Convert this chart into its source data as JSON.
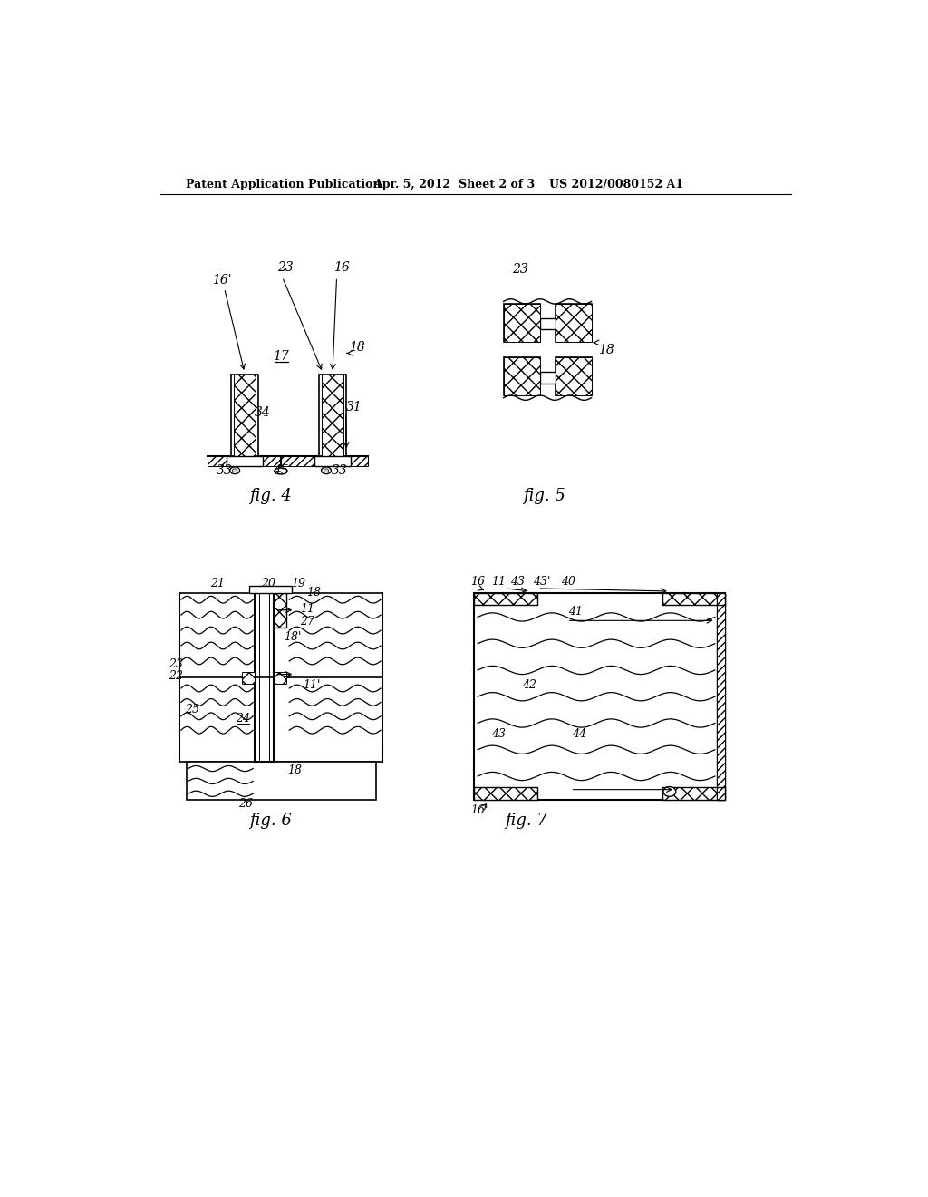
{
  "bg_color": "#ffffff",
  "header_text": "Patent Application Publication",
  "header_date": "Apr. 5, 2012",
  "header_sheet": "Sheet 2 of 3",
  "header_patent": "US 2012/0080152 A1"
}
